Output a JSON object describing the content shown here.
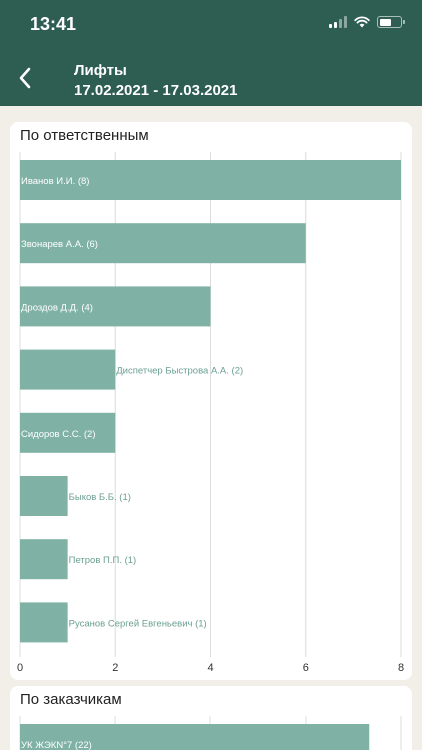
{
  "status_bar": {
    "time": "13:41"
  },
  "header": {
    "title": "Лифты",
    "date_range": "17.02.2021 - 17.03.2021"
  },
  "colors": {
    "header_bg": "#2e5e52",
    "bar": "#7fb2a4",
    "label_inside": "#ffffff",
    "label_outside": "#6a9f92",
    "grid": "#dcdcdc"
  },
  "chart_data": [
    {
      "type": "bar",
      "orientation": "horizontal",
      "title": "По ответственным",
      "categories": [
        "Иванов И.И. (8)",
        "Звонарев А.А. (6)",
        "Дроздов Д.Д. (4)",
        "Диспетчер Быстрова А.А. (2)",
        "Сидоров С.С. (2)",
        "Быков Б.Б. (1)",
        "Петров П.П. (1)",
        "Русанов Сергей Евгеньевич (1)"
      ],
      "values": [
        8,
        6,
        4,
        2,
        2,
        1,
        1,
        1
      ],
      "xlim": [
        0,
        8
      ],
      "xticks": [
        "0",
        "2",
        "4",
        "6",
        "8"
      ],
      "grid": true
    },
    {
      "type": "bar",
      "orientation": "horizontal",
      "title": "По заказчикам",
      "categories": [
        "УК ЖЭКN°7 (22)"
      ],
      "values": [
        22
      ],
      "grid": true
    }
  ]
}
